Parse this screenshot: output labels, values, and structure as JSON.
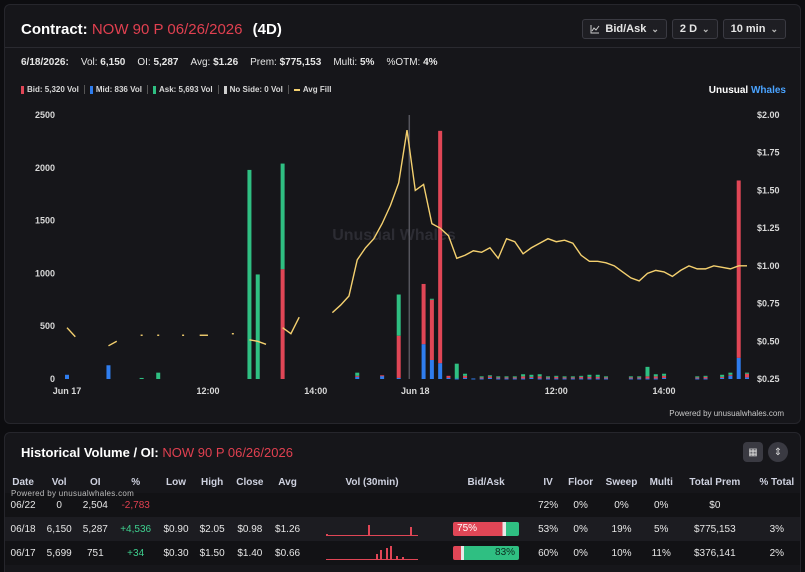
{
  "contract": {
    "label": "Contract:",
    "symbol": "NOW 90 P 06/26/2026",
    "dte": "(4D)",
    "controls": [
      {
        "icon": "chart-line-icon",
        "label": "Bid/Ask"
      },
      {
        "label": "2 D"
      },
      {
        "label": "10 min"
      }
    ]
  },
  "stats": {
    "date": "6/18/2026:",
    "vol_label": "Vol:",
    "vol": "6,150",
    "oi_label": "OI:",
    "oi": "5,287",
    "avg_label": "Avg:",
    "avg": "$1.26",
    "prem_label": "Prem:",
    "prem": "$775,153",
    "multi_label": "Multi:",
    "multi": "5%",
    "otm_label": "%OTM:",
    "otm": "4%"
  },
  "legend": {
    "items": [
      {
        "label": "Bid: 5,320 Vol",
        "color": "#e04656"
      },
      {
        "label": "Mid: 836 Vol",
        "color": "#2f7dee"
      },
      {
        "label": "Ask: 5,693 Vol",
        "color": "#2fbf82"
      },
      {
        "label": "No Side: 0 Vol",
        "color": "#cfcfcf"
      },
      {
        "label": "Avg Fill",
        "color": "#f4d06f"
      }
    ],
    "brand_a": "Unusual",
    "brand_b": "Whales"
  },
  "chart_data": {
    "type": "bar",
    "watermark": "Unusual Whales",
    "x_ticks": [
      "Jun 17",
      "12:00",
      "14:00",
      "Jun 18",
      "12:00",
      "14:00"
    ],
    "y_left_ticks": [
      "2500",
      "2000",
      "1500",
      "1000",
      "500",
      "0"
    ],
    "y_right_ticks": [
      "$2.00",
      "$1.75",
      "$1.50",
      "$1.25",
      "$1.00",
      "$0.75",
      "$0.50",
      "$0.25"
    ],
    "ylim_volume": [
      0,
      2500
    ],
    "ylim_price": [
      0.25,
      2.0
    ],
    "series": [
      {
        "name": "Bid",
        "color": "#e04656",
        "values": [
          0,
          0,
          0,
          0,
          0,
          0,
          0,
          0,
          0,
          0,
          0,
          0,
          0,
          0,
          0,
          0,
          0,
          0,
          0,
          0,
          0,
          0,
          0,
          0,
          0,
          0,
          1040,
          0,
          0,
          0,
          0,
          0,
          0,
          0,
          0,
          10,
          0,
          0,
          5,
          0,
          400,
          0,
          0,
          570,
          570,
          2200,
          20,
          0,
          20,
          0,
          10,
          15,
          10,
          10,
          10,
          20,
          10,
          20,
          10,
          15,
          10,
          10,
          15,
          15,
          15,
          10,
          0,
          0,
          10,
          10,
          20,
          20,
          20,
          0,
          0,
          0,
          10,
          15,
          0,
          10,
          10,
          1680,
          35
        ]
      },
      {
        "name": "Mid",
        "color": "#2f7dee",
        "values": [
          40,
          0,
          0,
          0,
          0,
          130,
          0,
          0,
          0,
          0,
          0,
          0,
          0,
          0,
          0,
          0,
          0,
          0,
          0,
          0,
          0,
          0,
          0,
          0,
          0,
          0,
          0,
          0,
          0,
          0,
          0,
          0,
          0,
          0,
          0,
          20,
          0,
          0,
          30,
          0,
          10,
          0,
          0,
          330,
          180,
          150,
          10,
          5,
          10,
          5,
          5,
          10,
          5,
          5,
          5,
          5,
          10,
          5,
          5,
          5,
          5,
          5,
          5,
          5,
          5,
          5,
          0,
          0,
          5,
          5,
          5,
          5,
          10,
          0,
          0,
          0,
          5,
          5,
          0,
          10,
          30,
          200,
          15
        ]
      },
      {
        "name": "Ask",
        "color": "#2fbf82",
        "values": [
          0,
          0,
          0,
          0,
          0,
          0,
          0,
          0,
          0,
          10,
          0,
          60,
          0,
          0,
          0,
          0,
          0,
          0,
          0,
          0,
          0,
          0,
          1980,
          990,
          0,
          0,
          1000,
          0,
          0,
          0,
          0,
          0,
          0,
          0,
          0,
          30,
          0,
          0,
          0,
          0,
          390,
          0,
          0,
          0,
          10,
          0,
          0,
          140,
          20,
          0,
          10,
          10,
          10,
          10,
          10,
          20,
          20,
          20,
          10,
          10,
          10,
          10,
          10,
          20,
          20,
          10,
          0,
          0,
          10,
          10,
          90,
          20,
          20,
          0,
          0,
          0,
          10,
          10,
          0,
          20,
          20,
          0,
          10
        ]
      },
      {
        "name": "Avg Fill",
        "color": "#f4d06f",
        "values": [
          0.59,
          0.53,
          null,
          null,
          null,
          0.47,
          0.5,
          null,
          null,
          0.54,
          null,
          0.54,
          null,
          null,
          0.54,
          null,
          0.54,
          0.54,
          null,
          null,
          0.55,
          null,
          0.51,
          0.5,
          0.48,
          null,
          0.59,
          0.55,
          0.66,
          null,
          null,
          null,
          0.69,
          0.74,
          0.8,
          1.04,
          1.12,
          1.18,
          1.28,
          1.4,
          1.55,
          1.9,
          1.5,
          1.54,
          1.28,
          1.25,
          1.2,
          1.05,
          1.07,
          1.1,
          1.09,
          1.12,
          1.05,
          1.18,
          1.16,
          1.08,
          1.12,
          1.15,
          1.18,
          1.16,
          1.17,
          1.15,
          1.07,
          1.03,
          1.03,
          1.02,
          1.0,
          0.96,
          0.92,
          0.9,
          0.95,
          0.97,
          0.96,
          0.93,
          0.97,
          1.0,
          0.98,
          0.98,
          1.0,
          0.99,
          0.98,
          1.0,
          1.0
        ]
      }
    ]
  },
  "powered": "Powered by unusualwhales.com",
  "history": {
    "title": "Historical Volume / OI:",
    "symbol": "NOW 90 P 06/26/2026",
    "powered": "Powered by unusualwhales.com",
    "columns": [
      "Date",
      "Vol",
      "OI",
      "%",
      "Low",
      "High",
      "Close",
      "Avg",
      "Vol (30min)",
      "Bid/Ask",
      "IV",
      "Floor",
      "Sweep",
      "Multi",
      "Total Prem",
      "% Total"
    ],
    "rows": [
      {
        "date": "06/22",
        "vol": "0",
        "oi": "2,504",
        "chg": "-2,783",
        "low": "",
        "high": "",
        "close": "",
        "avg": "",
        "bidask": "",
        "bid_pct": 0,
        "ask_pct": 0,
        "iv": "72%",
        "floor": "0%",
        "sweep": "0%",
        "multi": "0%",
        "prem": "$0",
        "pct_total": ""
      },
      {
        "date": "06/18",
        "vol": "6,150",
        "oi": "5,287",
        "chg": "+4,536",
        "low": "$0.90",
        "high": "$2.05",
        "close": "$0.98",
        "avg": "$1.26",
        "bidask": "75%",
        "bid_pct": 75,
        "ask_pct": 20,
        "iv": "53%",
        "floor": "0%",
        "sweep": "19%",
        "multi": "5%",
        "prem": "$775,153",
        "pct_total": "3%"
      },
      {
        "date": "06/17",
        "vol": "5,699",
        "oi": "751",
        "chg": "+34",
        "low": "$0.30",
        "high": "$1.50",
        "close": "$1.40",
        "avg": "$0.66",
        "bidask": "83%",
        "bid_pct": 12,
        "ask_pct": 83,
        "iv": "60%",
        "floor": "0%",
        "sweep": "10%",
        "multi": "11%",
        "prem": "$376,141",
        "pct_total": "2%"
      }
    ]
  }
}
